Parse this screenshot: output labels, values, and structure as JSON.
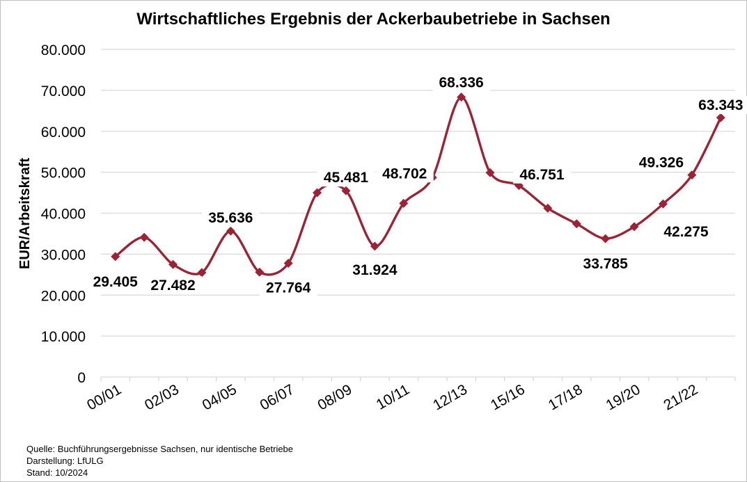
{
  "chart_data": {
    "type": "line",
    "title": "Wirtschaftliches Ergebnis der Ackerbaubetriebe in Sachsen",
    "ylabel": "EUR/Arbeitskraft",
    "xlabel": "",
    "ylim": [
      0,
      80000
    ],
    "yticks": [
      0,
      10000,
      20000,
      30000,
      40000,
      50000,
      60000,
      70000,
      80000
    ],
    "ytick_labels": [
      "0",
      "10.000",
      "20.000",
      "30.000",
      "40.000",
      "50.000",
      "60.000",
      "70.000",
      "80.000"
    ],
    "x_tick_labels": [
      "00/01",
      "02/03",
      "04/05",
      "06/07",
      "08/09",
      "10/11",
      "12/13",
      "15/16",
      "17/18",
      "19/20",
      "21/22"
    ],
    "grid": true,
    "legend": "none",
    "color": "#9b2335",
    "series": [
      {
        "values": [
          29405,
          34100,
          27482,
          25500,
          35636,
          25600,
          27764,
          45000,
          45481,
          31924,
          42400,
          48702,
          68336,
          49900,
          46751,
          41200,
          37400,
          33785,
          36700,
          42275,
          49326,
          63343
        ],
        "labels": [
          "29.405",
          "",
          "27.482",
          "",
          "35.636",
          "",
          "27.764",
          "",
          "45.481",
          "31.924",
          "",
          "48.702",
          "68.336",
          "",
          "46.751",
          "",
          "",
          "33.785",
          "",
          "42.275",
          "49.326",
          "63.343"
        ]
      }
    ]
  },
  "footer": {
    "source": "Quelle: Buchführungsergebnisse Sachsen, nur identische Betriebe",
    "author": "Darstellung: LfULG",
    "date": "Stand: 10/2024"
  }
}
